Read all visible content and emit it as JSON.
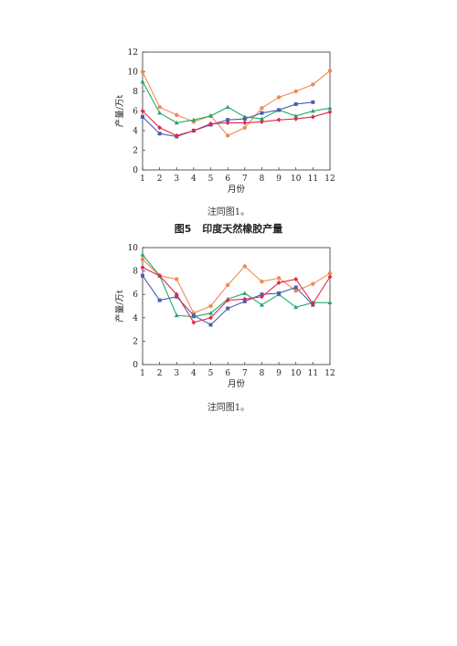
{
  "chart_data": [
    {
      "type": "line",
      "x": [
        1,
        2,
        3,
        4,
        5,
        6,
        7,
        8,
        9,
        10,
        11,
        12
      ],
      "xlabel": "月份",
      "ylabel": "产量/万t",
      "ylim": [
        0,
        12
      ],
      "xlim": [
        1,
        12
      ],
      "yticks": [
        0,
        2,
        4,
        6,
        8,
        10,
        12
      ],
      "grid": false,
      "series": [
        {
          "color": "#ef8a55",
          "marker": "circle",
          "values": [
            10.0,
            6.4,
            5.6,
            4.9,
            5.5,
            3.5,
            4.3,
            6.3,
            7.4,
            8.0,
            8.7,
            10.1
          ]
        },
        {
          "color": "#25a86a",
          "marker": "triangle",
          "values": [
            9.0,
            5.8,
            4.8,
            5.1,
            5.5,
            6.4,
            5.4,
            5.2,
            6.1,
            5.5,
            6.0,
            6.3
          ]
        },
        {
          "color": "#4a5fb0",
          "marker": "square",
          "values": [
            5.4,
            3.7,
            3.4,
            4.0,
            4.6,
            5.1,
            5.2,
            5.8,
            6.1,
            6.7,
            6.9,
            null
          ]
        },
        {
          "color": "#e0284a",
          "marker": "diamond",
          "values": [
            6.0,
            4.3,
            3.5,
            4.0,
            4.7,
            4.8,
            4.8,
            4.9,
            5.1,
            5.2,
            5.4,
            5.9
          ]
        }
      ]
    },
    {
      "type": "line",
      "x": [
        1,
        2,
        3,
        4,
        5,
        6,
        7,
        8,
        9,
        10,
        11,
        12
      ],
      "xlabel": "月份",
      "ylabel": "产量/万t",
      "ylim": [
        0,
        10
      ],
      "xlim": [
        1,
        12
      ],
      "yticks": [
        0,
        2,
        4,
        6,
        8,
        10
      ],
      "grid": false,
      "series": [
        {
          "color": "#ef8a55",
          "marker": "circle",
          "values": [
            9.0,
            7.6,
            7.3,
            4.4,
            5.0,
            6.8,
            8.4,
            7.1,
            7.4,
            6.3,
            6.9,
            7.8
          ]
        },
        {
          "color": "#25a86a",
          "marker": "triangle",
          "values": [
            9.4,
            7.6,
            4.2,
            4.1,
            4.4,
            5.6,
            6.1,
            5.1,
            6.0,
            4.9,
            5.3,
            5.3
          ]
        },
        {
          "color": "#4a5fb0",
          "marker": "square",
          "values": [
            7.6,
            5.5,
            5.8,
            4.2,
            3.4,
            4.8,
            5.4,
            6.0,
            6.1,
            6.6,
            5.1,
            null
          ]
        },
        {
          "color": "#e0284a",
          "marker": "diamond",
          "values": [
            8.3,
            7.6,
            6.0,
            3.6,
            4.0,
            5.5,
            5.6,
            5.8,
            7.0,
            7.3,
            5.2,
            7.5
          ]
        }
      ]
    }
  ],
  "notes": {
    "top": "注同图1。",
    "bottom": "注同图1。"
  },
  "caption": {
    "label": "图5",
    "title": "印度天然橡胶产量"
  }
}
